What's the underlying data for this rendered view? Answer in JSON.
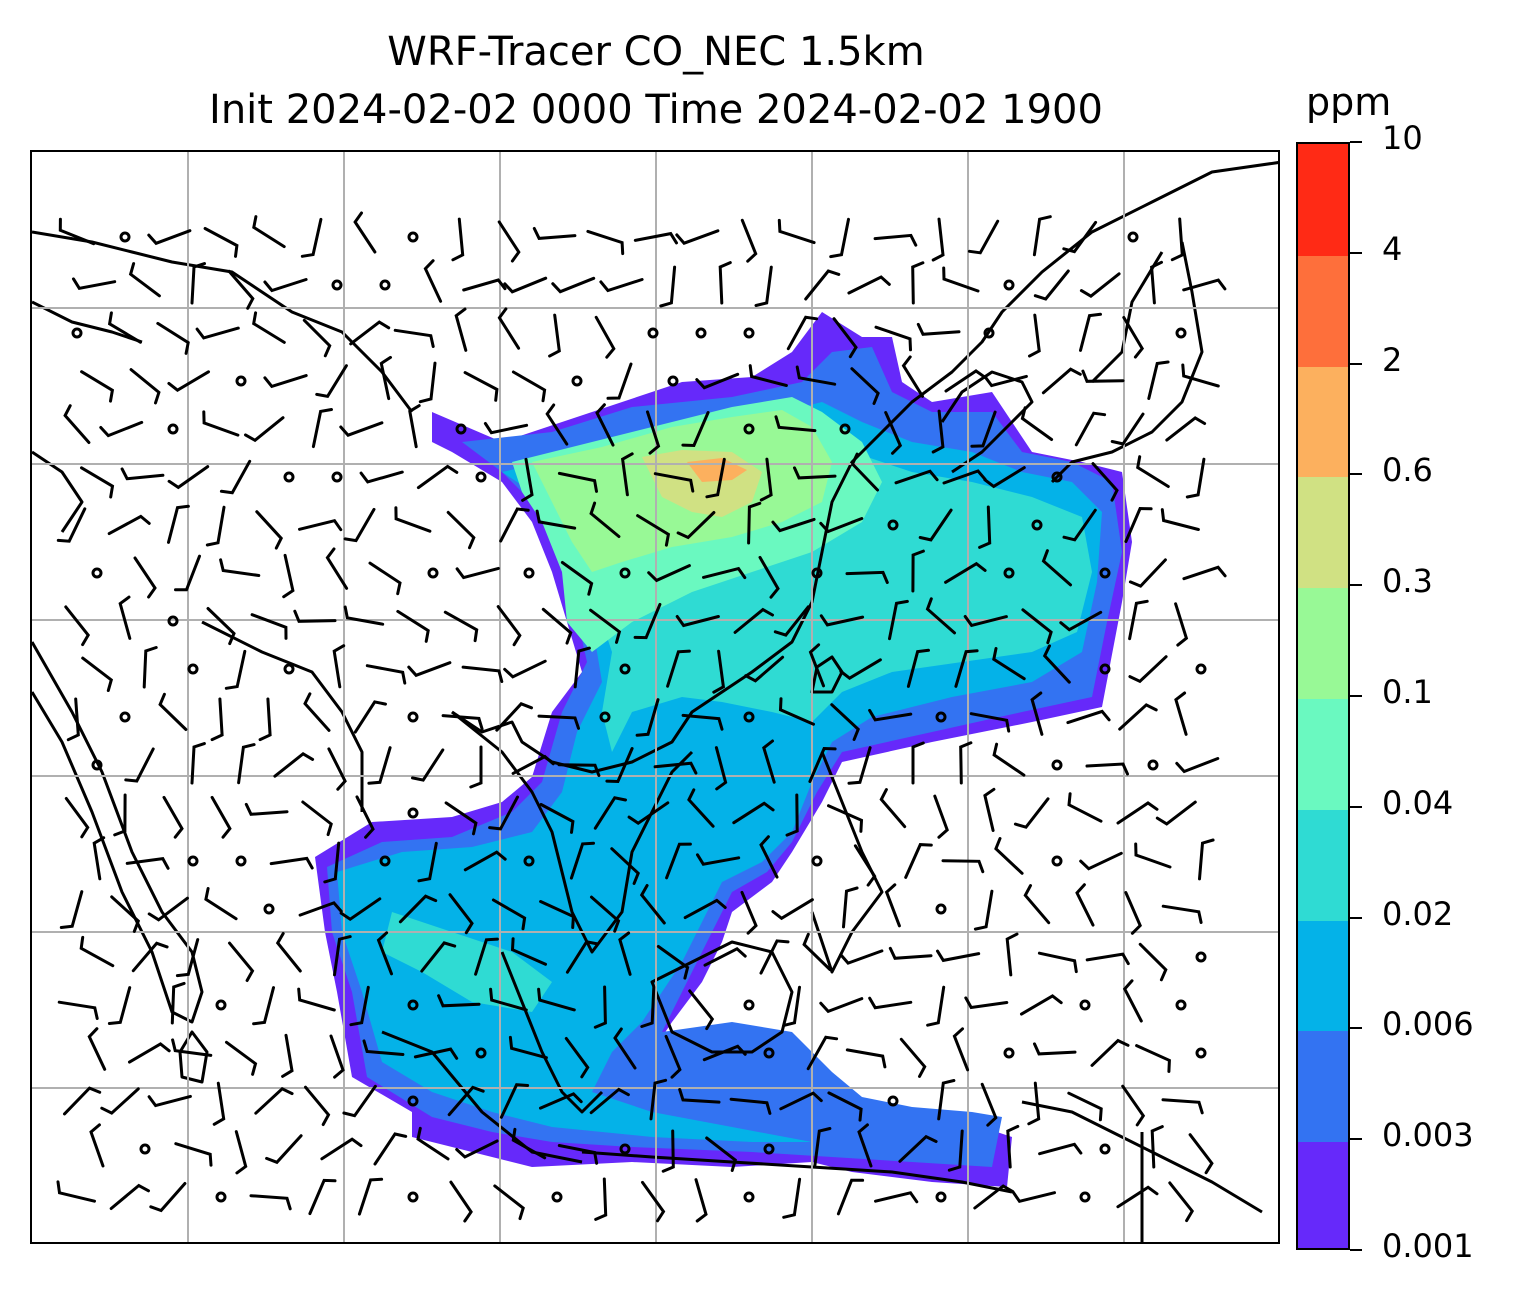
{
  "title": {
    "line1": "WRF-Tracer CO_NEC 1.5km",
    "line2": "Init 2024-02-02 0000 Time 2024-02-02 1900"
  },
  "colorbar": {
    "unit": "ppm",
    "levels": [
      "0.001",
      "0.003",
      "0.006",
      "0.02",
      "0.04",
      "0.1",
      "0.3",
      "0.6",
      "2",
      "4",
      "10"
    ],
    "colors": [
      "#6629fa",
      "#3373f2",
      "#04b2e8",
      "#2fdbd3",
      "#6af9c0",
      "#98f996",
      "#d0e183",
      "#fcb05e",
      "#fe6f3b",
      "#ff2a15"
    ]
  },
  "map": {
    "gridlines": true,
    "coastline_color": "#000000",
    "gridline_color": "#b0b0b0",
    "wind_barbs": true
  }
}
